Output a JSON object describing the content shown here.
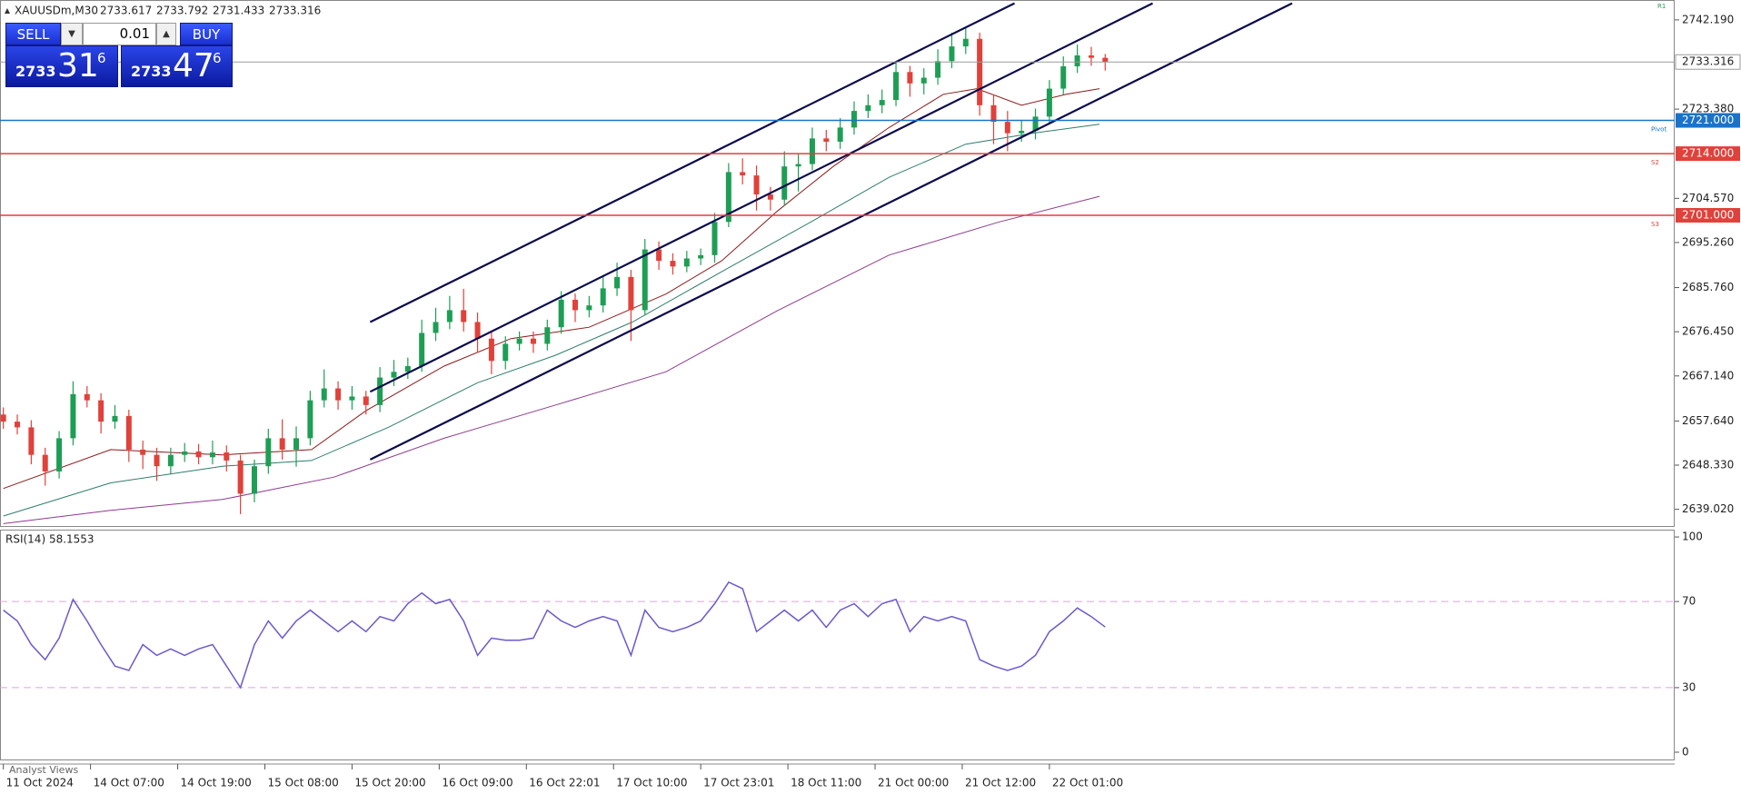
{
  "header": {
    "symbol": "XAUUSDm,M30",
    "ohlc": [
      2733.617,
      2733.792,
      2731.433,
      2733.316
    ]
  },
  "trade_panel": {
    "sell": "SELL",
    "buy": "BUY",
    "lot": "0.01",
    "sell_price": {
      "big": "2733",
      "digits": "31",
      "last": "6"
    },
    "buy_price": {
      "big": "2733",
      "digits": "47",
      "last": "6"
    }
  },
  "footer": "Analyst Views",
  "chart_data": [
    {
      "type": "candlestick",
      "open": [
        2659.0,
        2657.5,
        2656.3,
        2650.5,
        2647.0,
        2654.0,
        2663.3,
        2662.0,
        2657.5,
        2658.7,
        2651.6,
        2650.5,
        2648.1,
        2650.5,
        2651.2,
        2650.0,
        2651.0,
        2649.3,
        2642.3,
        2648.1,
        2654.0,
        2651.6,
        2654.0,
        2662.0,
        2664.5,
        2662.0,
        2662.8,
        2661.0,
        2666.8,
        2668.0,
        2669.2,
        2676.2,
        2678.5,
        2681.0,
        2678.5,
        2675.0,
        2670.3,
        2673.9,
        2675.0,
        2673.9,
        2677.4,
        2683.2,
        2681.0,
        2682.0,
        2685.6,
        2688.0,
        2681.0,
        2693.8,
        2691.4,
        2690.2,
        2691.9,
        2692.6,
        2699.6,
        2710.1,
        2709.4,
        2705.4,
        2704.3,
        2711.3,
        2711.8,
        2717.2,
        2716.5,
        2719.5,
        2723.0,
        2724.2,
        2725.3,
        2731.2,
        2728.8,
        2730.0,
        2733.5,
        2736.6,
        2738.2,
        2724.2,
        2720.7,
        2718.3,
        2718.8,
        2721.8,
        2727.7,
        2732.4,
        2734.7,
        2734.2
      ],
      "high": [
        2660.5,
        2659.0,
        2657.8,
        2652.0,
        2655.5,
        2666.0,
        2665.0,
        2663.5,
        2661.0,
        2660.0,
        2653.5,
        2652.0,
        2652.0,
        2653.0,
        2652.8,
        2653.5,
        2652.5,
        2650.5,
        2649.5,
        2656.0,
        2658.0,
        2656.5,
        2664.0,
        2668.5,
        2666.0,
        2665.0,
        2664.0,
        2669.0,
        2670.5,
        2671.0,
        2679.0,
        2681.5,
        2684.0,
        2685.5,
        2680.5,
        2676.5,
        2675.5,
        2676.5,
        2676.5,
        2679.0,
        2685.0,
        2684.5,
        2684.0,
        2688.0,
        2691.0,
        2689.5,
        2696.0,
        2695.5,
        2693.0,
        2693.5,
        2694.0,
        2701.5,
        2712.0,
        2713.0,
        2711.5,
        2707.0,
        2714.5,
        2714.0,
        2719.5,
        2719.0,
        2721.5,
        2725.0,
        2726.5,
        2727.5,
        2733.5,
        2732.5,
        2732.0,
        2736.0,
        2739.5,
        2740.5,
        2739.5,
        2726.5,
        2723.0,
        2721.0,
        2723.5,
        2729.5,
        2734.5,
        2737.0,
        2736.5,
        2735.0
      ],
      "low": [
        2656.0,
        2654.8,
        2648.5,
        2644.0,
        2645.5,
        2652.5,
        2660.5,
        2655.0,
        2656.0,
        2649.0,
        2647.5,
        2645.0,
        2646.5,
        2649.0,
        2648.5,
        2648.5,
        2647.0,
        2638.0,
        2640.5,
        2646.5,
        2649.5,
        2648.0,
        2652.5,
        2660.5,
        2660.0,
        2660.0,
        2659.0,
        2659.5,
        2665.0,
        2666.5,
        2668.0,
        2674.5,
        2677.0,
        2676.5,
        2672.0,
        2667.5,
        2668.5,
        2672.5,
        2672.0,
        2672.5,
        2676.0,
        2678.5,
        2679.5,
        2680.5,
        2684.0,
        2674.5,
        2680.0,
        2689.5,
        2688.5,
        2689.0,
        2690.5,
        2691.0,
        2698.5,
        2707.5,
        2702.0,
        2702.0,
        2703.0,
        2706.0,
        2710.5,
        2714.5,
        2715.0,
        2718.0,
        2721.5,
        2722.5,
        2724.0,
        2726.0,
        2726.5,
        2728.5,
        2732.0,
        2735.0,
        2722.0,
        2716.0,
        2714.5,
        2716.5,
        2717.0,
        2720.5,
        2726.5,
        2731.0,
        2732.5,
        2731.5
      ],
      "close": [
        2657.5,
        2656.3,
        2650.5,
        2647.0,
        2654.0,
        2663.3,
        2662.0,
        2657.5,
        2658.7,
        2651.6,
        2650.5,
        2648.1,
        2650.5,
        2651.2,
        2650.0,
        2651.0,
        2649.3,
        2642.3,
        2648.1,
        2654.0,
        2651.6,
        2654.0,
        2662.0,
        2664.5,
        2662.0,
        2662.8,
        2661.0,
        2666.8,
        2668.0,
        2669.2,
        2676.2,
        2678.5,
        2681.0,
        2678.5,
        2675.0,
        2670.3,
        2673.9,
        2675.0,
        2673.9,
        2677.4,
        2683.2,
        2681.0,
        2682.0,
        2685.6,
        2688.0,
        2681.0,
        2693.8,
        2691.4,
        2690.2,
        2691.9,
        2692.6,
        2699.6,
        2710.1,
        2709.4,
        2705.4,
        2704.3,
        2711.3,
        2711.8,
        2717.2,
        2716.5,
        2719.5,
        2723.0,
        2724.2,
        2725.3,
        2731.2,
        2728.8,
        2730.0,
        2733.5,
        2736.6,
        2738.2,
        2724.2,
        2720.7,
        2718.3,
        2718.8,
        2721.8,
        2727.7,
        2732.4,
        2734.7,
        2734.2,
        2733.316
      ],
      "up_color": "#1e9e55",
      "down_color": "#e0413a",
      "xlim": [
        -0.24,
        119.83
      ],
      "xticks": [
        {
          "value": 0,
          "label": "11 Oct 2024"
        },
        {
          "value": 6.25,
          "label": "14 Oct 07:00"
        },
        {
          "value": 12.5,
          "label": "14 Oct 19:00"
        },
        {
          "value": 18.75,
          "label": "15 Oct 08:00"
        },
        {
          "value": 25,
          "label": "15 Oct 20:00"
        },
        {
          "value": 31.25,
          "label": "16 Oct 09:00"
        },
        {
          "value": 37.5,
          "label": "16 Oct 22:01"
        },
        {
          "value": 43.75,
          "label": "17 Oct 10:00"
        },
        {
          "value": 50,
          "label": "17 Oct 23:01"
        },
        {
          "value": 56.25,
          "label": "18 Oct 11:00"
        },
        {
          "value": 62.5,
          "label": "21 Oct 00:00"
        },
        {
          "value": 68.75,
          "label": "21 Oct 12:00"
        },
        {
          "value": 75,
          "label": "22 Oct 01:00"
        }
      ],
      "ylim": [
        2635.5,
        2746
      ],
      "yticks": [
        {
          "value": 2742.19,
          "label": "2742.190"
        },
        {
          "value": 2723.38,
          "label": "2723.380"
        },
        {
          "value": 2704.57,
          "label": "2704.570"
        },
        {
          "value": 2695.26,
          "label": "2695.260"
        },
        {
          "value": 2685.76,
          "label": "2685.760"
        },
        {
          "value": 2676.45,
          "label": "2676.450"
        },
        {
          "value": 2667.14,
          "label": "2667.140"
        },
        {
          "value": 2657.64,
          "label": "2657.640"
        },
        {
          "value": 2648.33,
          "label": "2648.330"
        },
        {
          "value": 2639.02,
          "label": "2639.020"
        }
      ],
      "last_price": 2733.316,
      "last_price_color": "#9a9a9a",
      "levels": [
        {
          "name": "Pivot",
          "value": 2721,
          "label": "2721.000",
          "color": "#1a73c9"
        },
        {
          "name": "S2",
          "value": 2714,
          "label": "2714.000",
          "color": "#e0413a"
        },
        {
          "name": "S3",
          "value": 2701,
          "label": "2701.000",
          "color": "#e0413a"
        }
      ],
      "annotations": [
        "R1"
      ],
      "moving_averages": [
        {
          "color": "#8b1a1a",
          "x": [
            0,
            7.7,
            15.7,
            22.1,
            26,
            31.6,
            36.4,
            42,
            47.5,
            51.5,
            55.5,
            59.5,
            63.5,
            67.4,
            69.8,
            73,
            76.2,
            78.6
          ],
          "values": [
            2643.4,
            2651.6,
            2650.5,
            2651.6,
            2659.8,
            2669.2,
            2675,
            2677.4,
            2684.4,
            2691.4,
            2701.9,
            2711.3,
            2719.5,
            2726.5,
            2727.7,
            2724.2,
            2726.5,
            2727.7
          ]
        },
        {
          "color": "#2e7d6b",
          "x": [
            0,
            7.7,
            15.7,
            22.1,
            27.6,
            34,
            39.6,
            45.1,
            51.5,
            57.9,
            63.5,
            69,
            73.8,
            78.6
          ],
          "values": [
            2637.6,
            2644.6,
            2648.1,
            2649.3,
            2656.3,
            2665.7,
            2671.5,
            2678.5,
            2689.1,
            2699.6,
            2709,
            2716,
            2718.3,
            2720.2
          ]
        },
        {
          "color": "#8e3a8e",
          "x": [
            0,
            7.7,
            15.7,
            23.7,
            31.6,
            39.6,
            47.5,
            55.5,
            63.5,
            71.4,
            78.6
          ],
          "values": [
            2636,
            2638.8,
            2641.1,
            2645.8,
            2654,
            2661,
            2668,
            2680.9,
            2692.6,
            2699.6,
            2705
          ]
        }
      ],
      "trendlines": [
        {
          "color": "#0b0b4d",
          "x": [
            26.3,
            72.5
          ],
          "values": [
            2678.5,
            2745.7
          ]
        },
        {
          "color": "#0b0b4d",
          "x": [
            26.3,
            82.4
          ],
          "values": [
            2663.8,
            2745.7
          ]
        },
        {
          "color": "#0b0b4d",
          "x": [
            26.3,
            92.4
          ],
          "values": [
            2649.5,
            2745.7
          ]
        }
      ]
    },
    {
      "type": "line",
      "title": "RSI(14) 58.1553",
      "xlim": [
        -0.24,
        119.83
      ],
      "ylim": [
        -3.8,
        103.4
      ],
      "yticks": [
        0,
        30,
        70,
        100
      ],
      "level_lines": [
        30,
        70
      ],
      "series": [
        {
          "color": "#6a5acd",
          "values": [
            66,
            61,
            50,
            43,
            53,
            71,
            61,
            50,
            40,
            38,
            50,
            45,
            48,
            45,
            48,
            50,
            40,
            30,
            50,
            61,
            53,
            61,
            66,
            61,
            56,
            61,
            56,
            63,
            61,
            69,
            74,
            69,
            71,
            61,
            45,
            53,
            52,
            52,
            53,
            66,
            61,
            58,
            61,
            63,
            61,
            45,
            66,
            58,
            56,
            58,
            61,
            69,
            79,
            76,
            56,
            61,
            66,
            61,
            66,
            58,
            66,
            69,
            63,
            69,
            71,
            56,
            63,
            61,
            63,
            61,
            43,
            40,
            38,
            40,
            45,
            56,
            61,
            67,
            63,
            58.1553
          ]
        }
      ]
    }
  ]
}
